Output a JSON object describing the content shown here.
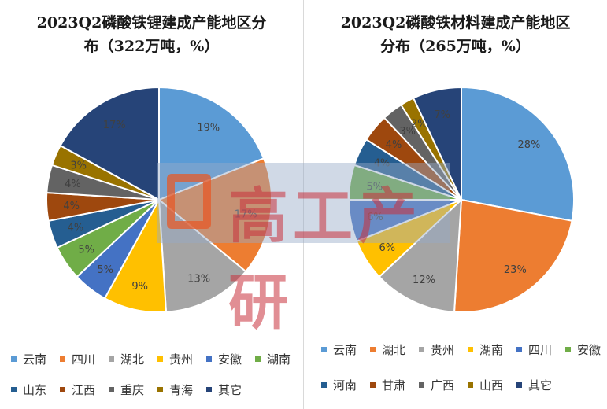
{
  "chart_data": [
    {
      "type": "pie",
      "title_line1": "2023Q2磷酸铁锂建成产能地区分",
      "title_line2": "布（322万吨，%）",
      "slices": [
        {
          "label": "云南",
          "value": 19,
          "color": "#5b9bd5"
        },
        {
          "label": "四川",
          "value": 17,
          "color": "#ed7d31"
        },
        {
          "label": "湖北",
          "value": 13,
          "color": "#a5a5a5"
        },
        {
          "label": "贵州",
          "value": 9,
          "color": "#ffc000"
        },
        {
          "label": "安徽",
          "value": 5,
          "color": "#4472c4"
        },
        {
          "label": "湖南",
          "value": 5,
          "color": "#70ad47"
        },
        {
          "label": "山东",
          "value": 4,
          "color": "#255e91"
        },
        {
          "label": "江西",
          "value": 4,
          "color": "#9e480e"
        },
        {
          "label": "重庆",
          "value": 4,
          "color": "#636363"
        },
        {
          "label": "青海",
          "value": 3,
          "color": "#997300"
        },
        {
          "label": "其它",
          "value": 17,
          "color": "#264478"
        }
      ],
      "data_labels": [
        "19%",
        "17%",
        "13%",
        "9%",
        "5%",
        "5%",
        "4%",
        "4%",
        "4%",
        "3%",
        "17%"
      ]
    },
    {
      "type": "pie",
      "title_line1": "2023Q2磷酸铁材料建成产能地区",
      "title_line2": "分布（265万吨，%）",
      "slices": [
        {
          "label": "云南",
          "value": 28,
          "color": "#5b9bd5"
        },
        {
          "label": "湖北",
          "value": 23,
          "color": "#ed7d31"
        },
        {
          "label": "贵州",
          "value": 12,
          "color": "#a5a5a5"
        },
        {
          "label": "湖南",
          "value": 6,
          "color": "#ffc000"
        },
        {
          "label": "四川",
          "value": 6,
          "color": "#4472c4"
        },
        {
          "label": "安徽",
          "value": 5,
          "color": "#70ad47"
        },
        {
          "label": "河南",
          "value": 4,
          "color": "#255e91"
        },
        {
          "label": "甘肃",
          "value": 4,
          "color": "#9e480e"
        },
        {
          "label": "广西",
          "value": 3,
          "color": "#636363"
        },
        {
          "label": "山西",
          "value": 2,
          "color": "#997300"
        },
        {
          "label": "其它",
          "value": 7,
          "color": "#264478"
        }
      ],
      "data_labels": [
        "28%",
        "23%",
        "12%",
        "6%",
        "6%",
        "5%",
        "4%",
        "4%",
        "3%",
        "2%",
        "7%"
      ]
    }
  ],
  "watermark": {
    "text": "高工产研"
  }
}
